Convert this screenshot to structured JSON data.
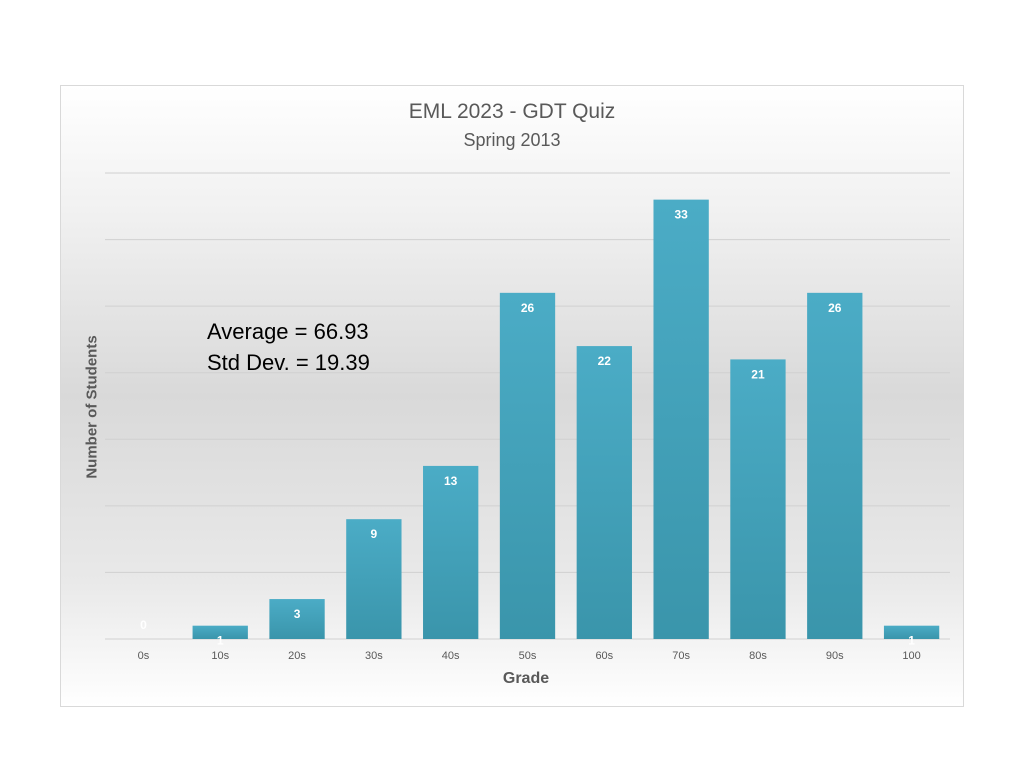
{
  "chart_data": {
    "type": "bar",
    "title": "EML 2023 - GDT Quiz",
    "subtitle": "Spring 2013",
    "xlabel": "Grade",
    "ylabel": "Number of Students",
    "categories": [
      "0s",
      "10s",
      "20s",
      "30s",
      "40s",
      "50s",
      "60s",
      "70s",
      "80s",
      "90s",
      "100"
    ],
    "values": [
      0,
      1,
      3,
      9,
      13,
      26,
      22,
      33,
      21,
      26,
      1
    ],
    "data_labels": [
      "0",
      "1",
      "3",
      "9",
      "13",
      "26",
      "22",
      "33",
      "21",
      "26",
      "1"
    ],
    "ylim": [
      0,
      35
    ],
    "grid": true,
    "legend": "none",
    "annotations": [
      "Average = 66.93",
      "Std Dev. = 19.39"
    ],
    "colors": {
      "bar_top": "#4bacc6",
      "bar_bottom": "#3a95ab",
      "data_label": "#ffffff",
      "gridline": "#d0d0d0",
      "axis_text": "#595959"
    }
  }
}
